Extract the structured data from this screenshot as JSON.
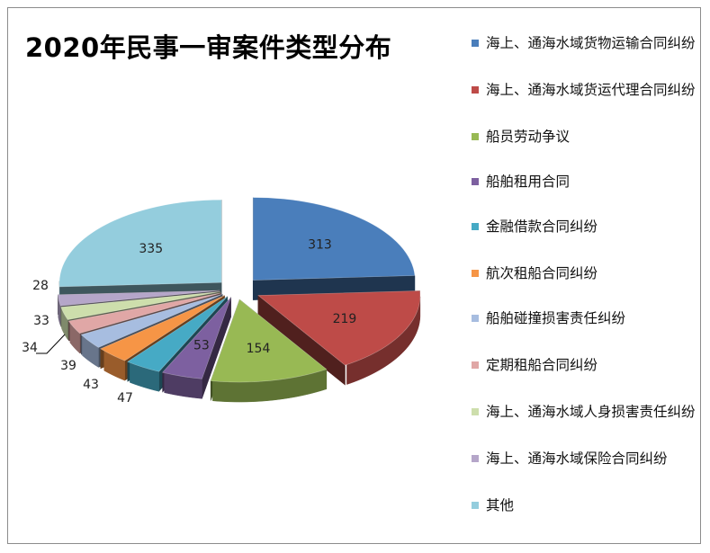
{
  "chart_data": {
    "type": "pie",
    "title": "2020年民事一审案件类型分布",
    "legend_position": "right",
    "slices": [
      {
        "label": "海上、通海水域货物运输合同纠纷",
        "value": 313,
        "color": "#4a7ebb"
      },
      {
        "label": "海上、通海水域货运代理合同纠纷",
        "value": 219,
        "color": "#be4b48"
      },
      {
        "label": "船员劳动争议",
        "value": 154,
        "color": "#98b954"
      },
      {
        "label": "船舶租用合同",
        "value": 53,
        "color": "#7d60a0"
      },
      {
        "label": "金融借款合同纠纷",
        "value": 47,
        "color": "#46aac5"
      },
      {
        "label": "航次租船合同纠纷",
        "value": 43,
        "color": "#f69546"
      },
      {
        "label": "船舶碰撞损害责任纠纷",
        "value": 39,
        "color": "#a7bde0"
      },
      {
        "label": "定期租船合同纠纷",
        "value": 34,
        "color": "#e0a7a6"
      },
      {
        "label": "海上、通海水域人身损害责任纠纷",
        "value": 33,
        "color": "#cddeac"
      },
      {
        "label": "海上、通海水域保险合同纠纷",
        "value": 28,
        "color": "#b5a6c9"
      },
      {
        "label": "其他",
        "value": 335,
        "color": "#94cddd"
      }
    ]
  }
}
